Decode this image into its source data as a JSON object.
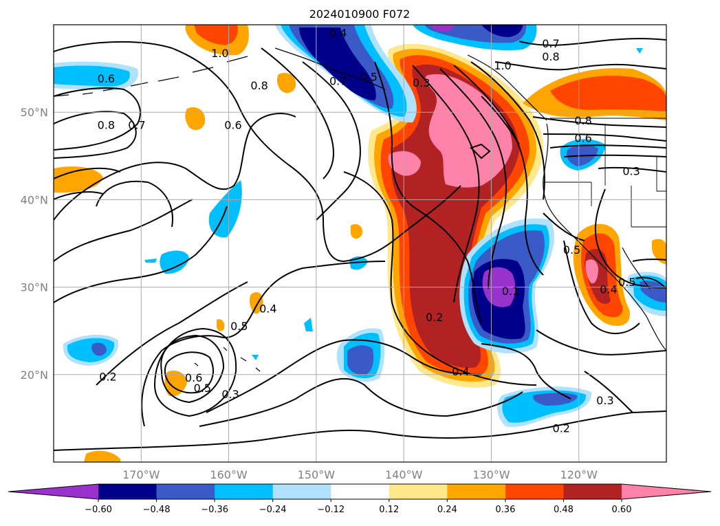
{
  "title": "2024010900 F072",
  "map": {
    "lat_labels": [
      {
        "lat": 50,
        "text": "50°N"
      },
      {
        "lat": 40,
        "text": "40°N"
      },
      {
        "lat": 30,
        "text": "30°N"
      },
      {
        "lat": 20,
        "text": "20°N"
      }
    ],
    "lon_labels": [
      {
        "lon": -170,
        "text": "170°W"
      },
      {
        "lon": -160,
        "text": "160°W"
      },
      {
        "lon": -150,
        "text": "150°W"
      },
      {
        "lon": -140,
        "text": "140°W"
      },
      {
        "lon": -130,
        "text": "130°W"
      },
      {
        "lon": -120,
        "text": "120°W"
      }
    ],
    "extent": {
      "lon_min": -180,
      "lon_max": -110,
      "lat_min": 10,
      "lat_max": 60
    },
    "contour_labels": [
      {
        "text": "0.6",
        "lon": -174,
        "lat": 53.8
      },
      {
        "text": "0.8",
        "lon": -174,
        "lat": 48.5
      },
      {
        "text": "0.7",
        "lon": -170.5,
        "lat": 48.5
      },
      {
        "text": "1.0",
        "lon": -161,
        "lat": 56.7
      },
      {
        "text": "0.8",
        "lon": -156.5,
        "lat": 53
      },
      {
        "text": "0.6",
        "lon": -159.5,
        "lat": 48.5
      },
      {
        "text": "0.4",
        "lon": -147.5,
        "lat": 59
      },
      {
        "text": "0.5",
        "lon": -144,
        "lat": 54
      },
      {
        "text": "0.7",
        "lon": -147.5,
        "lat": 53.5
      },
      {
        "text": "0.3",
        "lon": -138,
        "lat": 53.3
      },
      {
        "text": "0.7",
        "lon": -123.2,
        "lat": 57.8
      },
      {
        "text": "0.8",
        "lon": -123.2,
        "lat": 56.3
      },
      {
        "text": "1.0",
        "lon": -128.7,
        "lat": 55.3
      },
      {
        "text": "0.8",
        "lon": -119.5,
        "lat": 49
      },
      {
        "text": "0.6",
        "lon": -119.5,
        "lat": 47
      },
      {
        "text": "0.3",
        "lon": -114,
        "lat": 43.2
      },
      {
        "text": "0.5",
        "lon": -120.8,
        "lat": 34.2
      },
      {
        "text": "0.4",
        "lon": -116.6,
        "lat": 29.7
      },
      {
        "text": "0.5",
        "lon": -114.5,
        "lat": 30.5
      },
      {
        "text": "0.1",
        "lon": -127.8,
        "lat": 29.5
      },
      {
        "text": "0.2",
        "lon": -136.5,
        "lat": 26.5
      },
      {
        "text": "0.4",
        "lon": -133.5,
        "lat": 20.3
      },
      {
        "text": "0.5",
        "lon": -158.8,
        "lat": 25.5
      },
      {
        "text": "0.4",
        "lon": -155.5,
        "lat": 27.5
      },
      {
        "text": "0.6",
        "lon": -164,
        "lat": 19.6
      },
      {
        "text": "0.5",
        "lon": -163,
        "lat": 18.4
      },
      {
        "text": "0.3",
        "lon": -159.8,
        "lat": 17.7
      },
      {
        "text": "0.2",
        "lon": -173.8,
        "lat": 19.7
      },
      {
        "text": "0.3",
        "lon": -117,
        "lat": 17
      },
      {
        "text": "0.2",
        "lon": -122,
        "lat": 13.8
      }
    ]
  },
  "colorbar": {
    "labels": [
      "−0.60",
      "−0.48",
      "−0.36",
      "−0.24",
      "−0.12",
      "0.12",
      "0.24",
      "0.36",
      "0.48",
      "0.60"
    ],
    "colors": [
      "#9932cc",
      "#00008b",
      "#3a5ac8",
      "#00bfff",
      "#b0e2ff",
      "#ffffff",
      "#ffe88c",
      "#ffa500",
      "#ff4500",
      "#b22222",
      "#ff82ab"
    ]
  }
}
